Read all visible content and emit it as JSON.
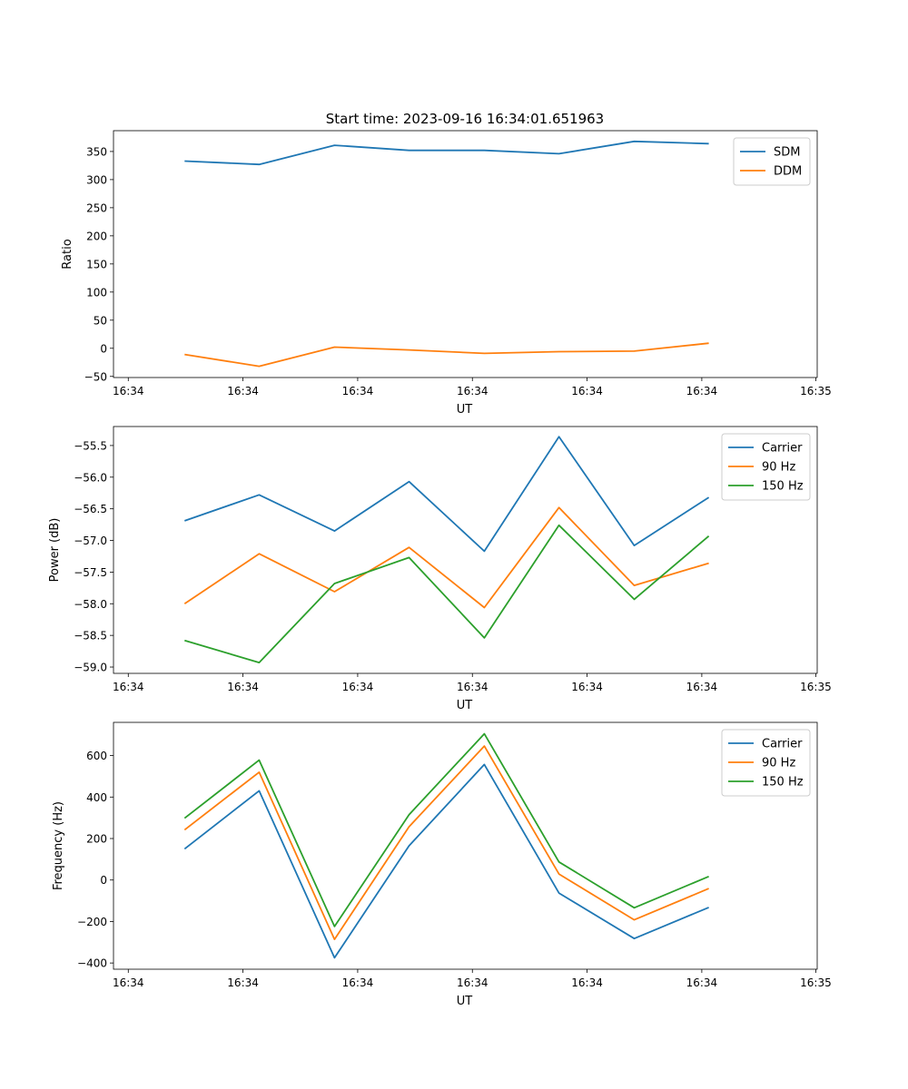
{
  "title": "Start time: 2023-09-16 16:34:01.651963",
  "chart_data": [
    {
      "type": "line",
      "xlabel": "UT",
      "ylabel": "Ratio",
      "x_tick_labels": [
        "16:34",
        "16:34",
        "16:34",
        "16:34",
        "16:34",
        "16:34",
        "16:35"
      ],
      "y_ticks": [
        -50,
        0,
        50,
        100,
        150,
        200,
        250,
        300,
        350
      ],
      "ylim": [
        -52,
        387
      ],
      "legend_position": "top-right",
      "series": [
        {
          "name": "SDM",
          "color": "#1f77b4",
          "values": [
            333,
            327,
            361,
            352,
            352,
            346,
            368,
            364
          ]
        },
        {
          "name": "DDM",
          "color": "#ff7f0e",
          "values": [
            -11,
            -32,
            2,
            -3,
            -9,
            -6,
            -5,
            9
          ]
        }
      ]
    },
    {
      "type": "line",
      "xlabel": "UT",
      "ylabel": "Power (dB)",
      "x_tick_labels": [
        "16:34",
        "16:34",
        "16:34",
        "16:34",
        "16:34",
        "16:34",
        "16:35"
      ],
      "y_ticks": [
        -59.0,
        -58.5,
        -58.0,
        -57.5,
        -57.0,
        -56.5,
        -56.0,
        -55.5
      ],
      "ylim": [
        -59.1,
        -55.2
      ],
      "legend_position": "top-right",
      "series": [
        {
          "name": "Carrier",
          "color": "#1f77b4",
          "values": [
            -56.69,
            -56.28,
            -56.85,
            -56.07,
            -57.17,
            -55.36,
            -57.08,
            -56.32
          ]
        },
        {
          "name": "90 Hz",
          "color": "#ff7f0e",
          "values": [
            -58.0,
            -57.21,
            -57.81,
            -57.11,
            -58.06,
            -56.48,
            -57.71,
            -57.36
          ]
        },
        {
          "name": "150 Hz",
          "color": "#2ca02c",
          "values": [
            -58.58,
            -58.93,
            -57.68,
            -57.27,
            -58.54,
            -56.76,
            -57.93,
            -56.93
          ]
        }
      ]
    },
    {
      "type": "line",
      "xlabel": "UT",
      "ylabel": "Frequency (Hz)",
      "x_tick_labels": [
        "16:34",
        "16:34",
        "16:34",
        "16:34",
        "16:34",
        "16:34",
        "16:35"
      ],
      "y_ticks": [
        -400,
        -200,
        0,
        200,
        400,
        600
      ],
      "ylim": [
        -430,
        760
      ],
      "legend_position": "top-right",
      "series": [
        {
          "name": "Carrier",
          "color": "#1f77b4",
          "values": [
            150,
            430,
            -375,
            165,
            557,
            -63,
            -282,
            -132
          ]
        },
        {
          "name": "90 Hz",
          "color": "#ff7f0e",
          "values": [
            242,
            520,
            -286,
            257,
            646,
            29,
            -192,
            -41
          ]
        },
        {
          "name": "150 Hz",
          "color": "#2ca02c",
          "values": [
            298,
            578,
            -224,
            315,
            705,
            87,
            -134,
            17
          ]
        }
      ]
    }
  ]
}
